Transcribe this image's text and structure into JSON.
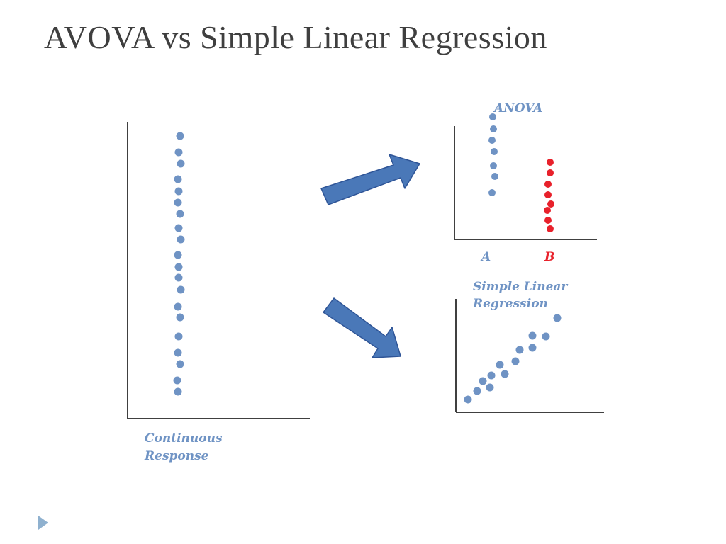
{
  "slide": {
    "title": "AVOVA vs Simple Linear Regression"
  },
  "colors": {
    "blue_dot": "#6f93c4",
    "red_dot": "#e8212b",
    "arrow_fill": "#4a78b8",
    "arrow_stroke": "#2f5597",
    "label_blue": "#6f93c4",
    "label_red": "#e8212b",
    "axis": "#000000"
  },
  "panels": {
    "continuous": {
      "label_line1": "Continuous",
      "label_line2": "Response"
    },
    "anova": {
      "title": "ANOVA",
      "group_a_label": "A",
      "group_b_label": "B"
    },
    "regression": {
      "label_line1": "Simple Linear",
      "label_line2": "Regression"
    }
  },
  "icons": {
    "arrow_up_right": "block-arrow-up-right",
    "arrow_down_right": "block-arrow-down-right",
    "nav": "triangle-right-icon"
  }
}
